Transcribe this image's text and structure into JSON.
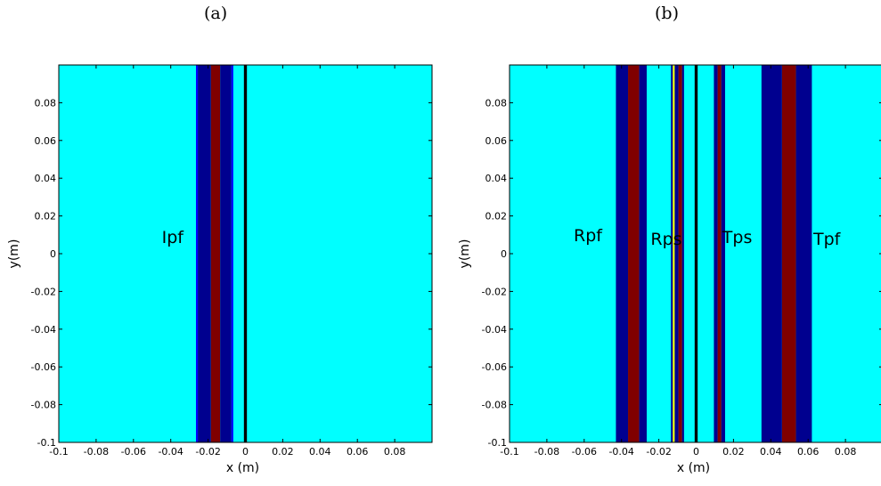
{
  "panels": [
    {
      "label": "(a)"
    },
    {
      "label": "(b)"
    }
  ],
  "colors": {
    "background": "#00ffff",
    "navy": "#00008f",
    "darkred": "#800000",
    "blue": "#0000ff",
    "black": "#000000",
    "yellow": "#ffff00"
  },
  "chart_data": [
    {
      "type": "heatmap",
      "panel": "(a)",
      "xlabel": "x (m)",
      "ylabel": "y(m)",
      "xlim": [
        -0.1,
        0.1
      ],
      "ylim": [
        -0.1,
        0.1
      ],
      "xticks": [
        -0.1,
        -0.08,
        -0.06,
        -0.04,
        -0.02,
        0,
        0.02,
        0.04,
        0.06,
        0.08
      ],
      "yticks": [
        -0.1,
        -0.08,
        -0.06,
        -0.04,
        -0.02,
        0,
        0.02,
        0.04,
        0.06,
        0.08
      ],
      "xtick_labels": [
        "-0.1",
        "-0.08",
        "-0.06",
        "-0.04",
        "-0.02",
        "0",
        "0.02",
        "0.04",
        "0.06",
        "0.08"
      ],
      "ytick_labels": [
        "-0.1",
        "-0.08",
        "-0.06",
        "-0.04",
        "-0.02",
        "0",
        "0.02",
        "0.04",
        "0.06",
        "0.08"
      ],
      "bands": [
        {
          "x0": -0.0265,
          "x1": -0.0255,
          "color": "blue"
        },
        {
          "x0": -0.0255,
          "x1": -0.0185,
          "color": "navy"
        },
        {
          "x0": -0.0185,
          "x1": -0.0135,
          "color": "darkred"
        },
        {
          "x0": -0.0135,
          "x1": -0.0075,
          "color": "navy"
        },
        {
          "x0": -0.0075,
          "x1": -0.0065,
          "color": "blue"
        },
        {
          "x0": -0.0008,
          "x1": 0.0008,
          "color": "black"
        }
      ],
      "annotations": [
        {
          "text": "Ipf",
          "x": -0.039,
          "y": 0.009
        }
      ]
    },
    {
      "type": "heatmap",
      "panel": "(b)",
      "xlabel": "x (m)",
      "ylabel": "y(m)",
      "xlim": [
        -0.1,
        0.1
      ],
      "ylim": [
        -0.1,
        0.1
      ],
      "xticks": [
        -0.1,
        -0.08,
        -0.06,
        -0.04,
        -0.02,
        0,
        0.02,
        0.04,
        0.06,
        0.08
      ],
      "yticks": [
        -0.1,
        -0.08,
        -0.06,
        -0.04,
        -0.02,
        0,
        0.02,
        0.04,
        0.06,
        0.08
      ],
      "xtick_labels": [
        "-0.1",
        "-0.08",
        "-0.06",
        "-0.04",
        "-0.02",
        "0",
        "0.02",
        "0.04",
        "0.06",
        "0.08"
      ],
      "ytick_labels": [
        "-0.1",
        "-0.08",
        "-0.06",
        "-0.04",
        "-0.02",
        "0",
        "0.02",
        "0.04",
        "0.06",
        "0.08"
      ],
      "bands": [
        {
          "x0": -0.043,
          "x1": -0.0365,
          "color": "navy"
        },
        {
          "x0": -0.0365,
          "x1": -0.0305,
          "color": "darkred"
        },
        {
          "x0": -0.0305,
          "x1": -0.0265,
          "color": "navy"
        },
        {
          "x0": -0.0135,
          "x1": -0.0125,
          "color": "navy"
        },
        {
          "x0": -0.0125,
          "x1": -0.0115,
          "color": "yellow"
        },
        {
          "x0": -0.0115,
          "x1": -0.0095,
          "color": "navy"
        },
        {
          "x0": -0.0095,
          "x1": -0.0075,
          "color": "darkred"
        },
        {
          "x0": -0.0075,
          "x1": -0.0065,
          "color": "navy"
        },
        {
          "x0": -0.0008,
          "x1": 0.0008,
          "color": "black"
        },
        {
          "x0": 0.0095,
          "x1": 0.0115,
          "color": "navy"
        },
        {
          "x0": 0.0115,
          "x1": 0.0135,
          "color": "darkred"
        },
        {
          "x0": 0.0135,
          "x1": 0.0155,
          "color": "navy"
        },
        {
          "x0": 0.035,
          "x1": 0.046,
          "color": "navy"
        },
        {
          "x0": 0.046,
          "x1": 0.0535,
          "color": "darkred"
        },
        {
          "x0": 0.0535,
          "x1": 0.062,
          "color": "navy"
        }
      ],
      "annotations": [
        {
          "text": "Rpf",
          "x": -0.058,
          "y": 0.01
        },
        {
          "text": "Rps",
          "x": -0.016,
          "y": 0.008
        },
        {
          "text": "Tps",
          "x": 0.022,
          "y": 0.009
        },
        {
          "text": "Tpf",
          "x": 0.07,
          "y": 0.008
        }
      ]
    }
  ]
}
